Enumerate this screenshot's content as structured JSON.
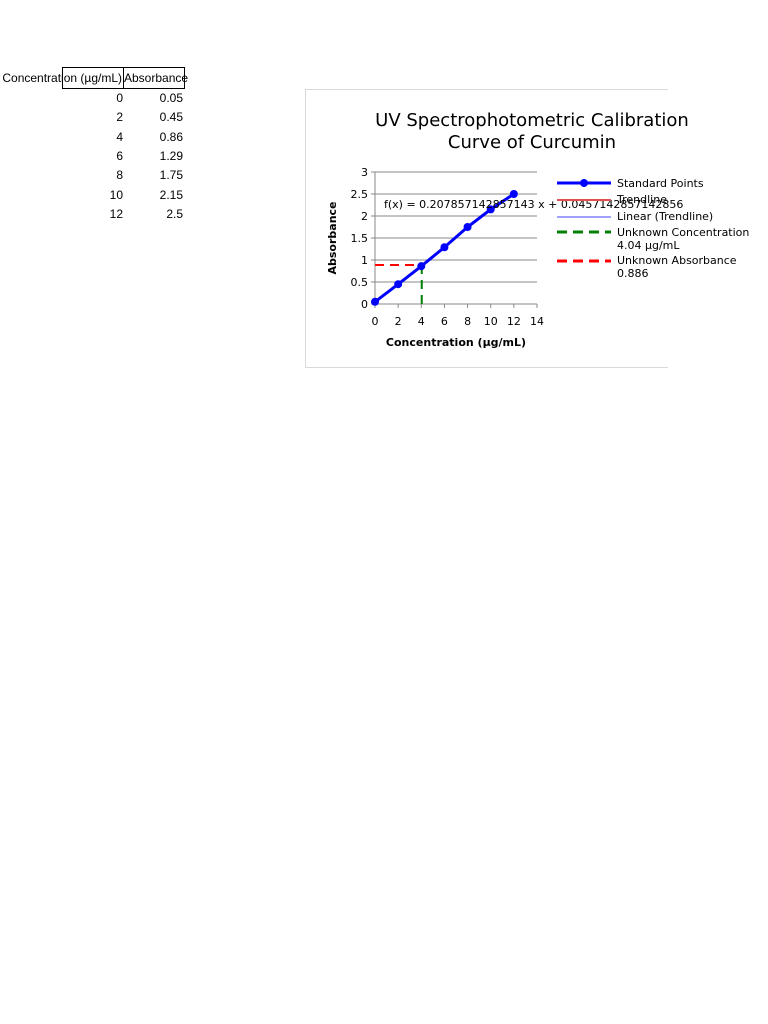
{
  "table": {
    "headers": [
      "Concentration (µg/mL)",
      "Absorbance"
    ],
    "rows": [
      [
        "0",
        "0.05"
      ],
      [
        "2",
        "0.45"
      ],
      [
        "4",
        "0.86"
      ],
      [
        "6",
        "1.29"
      ],
      [
        "8",
        "1.75"
      ],
      [
        "10",
        "2.15"
      ],
      [
        "12",
        "2.5"
      ]
    ]
  },
  "chart_data": {
    "type": "line",
    "title": [
      "UV Spectrophotometric Calibration",
      "Curve of Curcumin"
    ],
    "xlabel": "Concentration (µg/mL)",
    "ylabel": "Absorbance",
    "xlim": [
      0,
      14
    ],
    "ylim": [
      0,
      3
    ],
    "xticks": [
      "0",
      "2",
      "4",
      "6",
      "8",
      "10",
      "12",
      "14"
    ],
    "yticks": [
      "0",
      "0.5",
      "1",
      "1.5",
      "2",
      "2.5",
      "3"
    ],
    "grid": "horizontal",
    "legend_position": "right",
    "equation": "f(x) = 0.207857142857143 x + 0.0457142857142856",
    "series": [
      {
        "name": "Standard Points",
        "color": "#0000ff",
        "style": "line-markers",
        "x": [
          0,
          2,
          4,
          6,
          8,
          10,
          12
        ],
        "y": [
          0.05,
          0.45,
          0.86,
          1.29,
          1.75,
          2.15,
          2.5
        ]
      },
      {
        "name": "Trendline",
        "color": "#e05050",
        "style": "line",
        "x": [],
        "y": []
      },
      {
        "name": "Linear (Trendline)",
        "color": "#4040ff",
        "style": "thin-line",
        "x": [],
        "y": []
      },
      {
        "name": "Unknown Concentration 4.04 µg/mL",
        "color": "#008000",
        "style": "dashed",
        "x": [
          4.04,
          4.04
        ],
        "y": [
          0,
          0.886
        ]
      },
      {
        "name": "Unknown Absorbance 0.886",
        "color": "#ff0000",
        "style": "dashed",
        "x": [
          0,
          4.04
        ],
        "y": [
          0.886,
          0.886
        ]
      }
    ]
  }
}
